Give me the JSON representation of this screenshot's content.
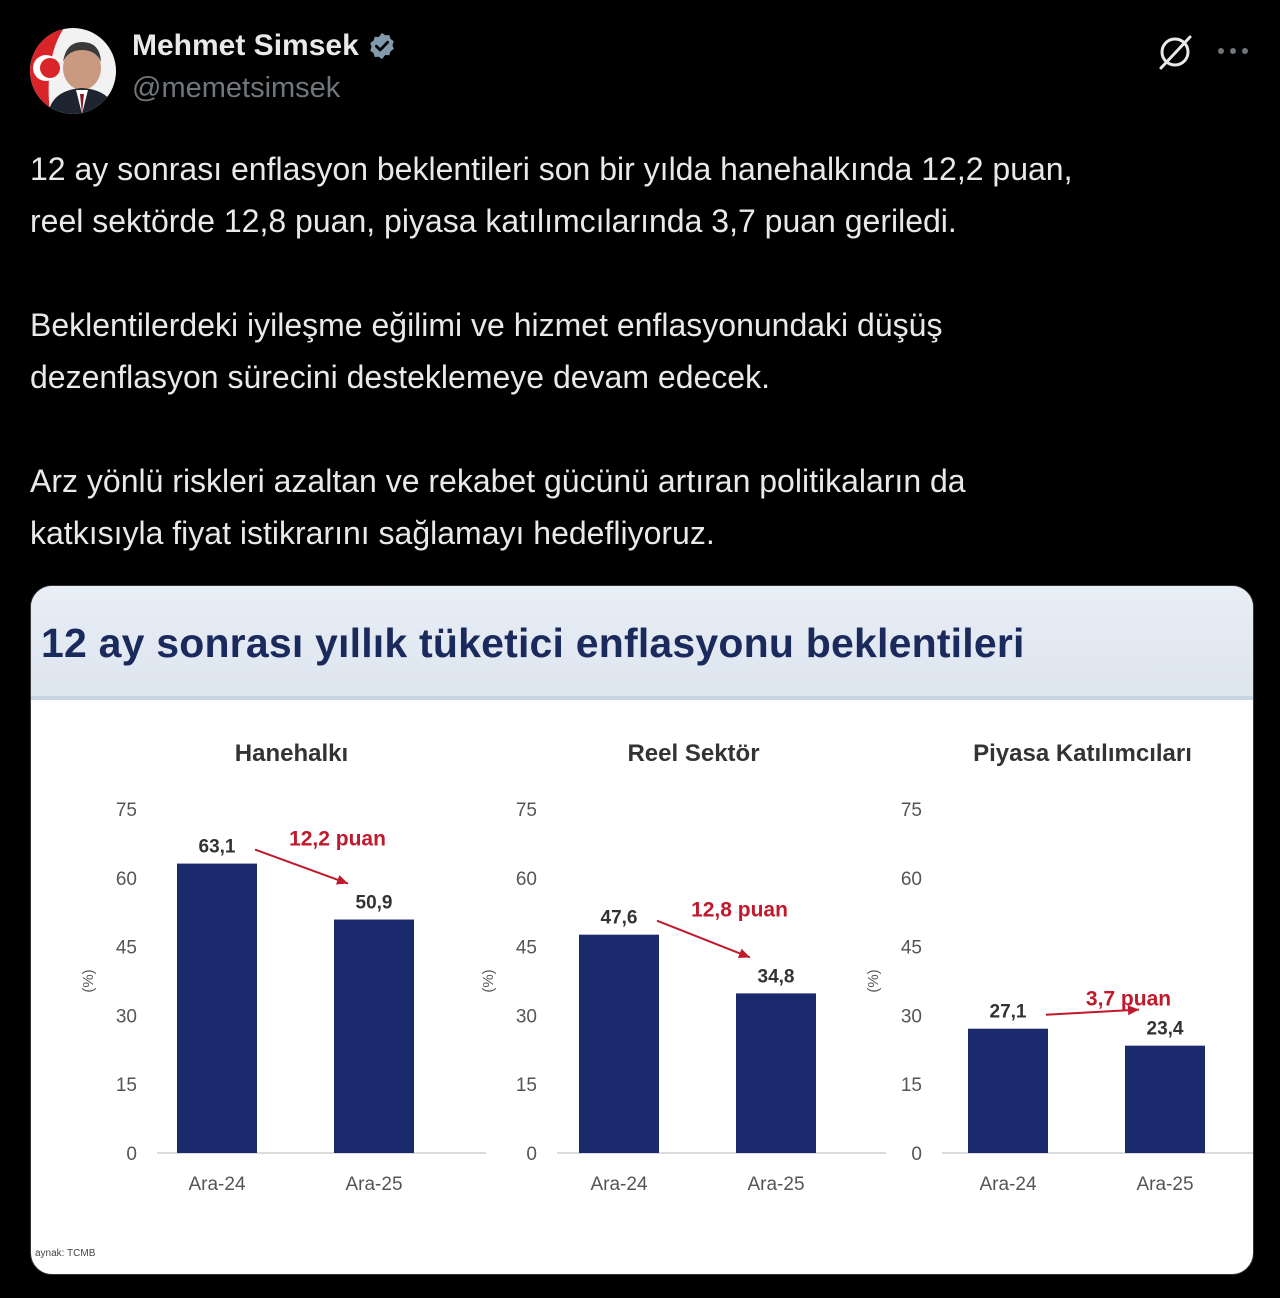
{
  "author": {
    "display_name": "Mehmet Simsek",
    "handle": "@memetsimsek"
  },
  "tweet": {
    "paragraphs": [
      "12 ay sonrası enflasyon beklentileri son bir yılda hanehalkında 12,2 puan,\nreel sektörde 12,8 puan, piyasa katılımcılarında 3,7 puan geriledi.",
      "Beklentilerdeki iyileşme eğilimi ve hizmet enflasyonundaki düşüş\ndezenflasyon sürecini desteklemeye devam edecek.",
      "Arz yönlü riskleri azaltan ve rekabet gücünü artıran politikaların da\nkatkısıyla fiyat istikrarını sağlamayı hedefliyoruz."
    ]
  },
  "icons": {
    "verified": "verified-badge-icon",
    "grok": "grok-icon",
    "more": "more-options-icon"
  },
  "colors": {
    "bar": "#1a2a6c",
    "annotation": "#c0192c",
    "title": "#1b2a5c",
    "verified": "#829aab"
  },
  "media": {
    "title": "12 ay sonrası yıllık tüketici enflasyonu beklentileri",
    "source": "aynak: TCMB"
  },
  "chart_data": [
    {
      "type": "bar",
      "title": "Hanehalkı",
      "ylabel": "(%)",
      "ylim": [
        0,
        75
      ],
      "yticks": [
        0,
        15,
        30,
        45,
        60,
        75
      ],
      "categories": [
        "Ara-24",
        "Ara-25"
      ],
      "values": [
        63.1,
        50.9
      ],
      "value_labels": [
        "63,1",
        "50,9"
      ],
      "annotation": "12,2 puan"
    },
    {
      "type": "bar",
      "title": "Reel Sektör",
      "ylabel": "(%)",
      "ylim": [
        0,
        75
      ],
      "yticks": [
        0,
        15,
        30,
        45,
        60,
        75
      ],
      "categories": [
        "Ara-24",
        "Ara-25"
      ],
      "values": [
        47.6,
        34.8
      ],
      "value_labels": [
        "47,6",
        "34,8"
      ],
      "annotation": "12,8 puan"
    },
    {
      "type": "bar",
      "title": "Piyasa Katılımcıları",
      "ylabel": "(%)",
      "ylim": [
        0,
        75
      ],
      "yticks": [
        0,
        15,
        30,
        45,
        60,
        75
      ],
      "categories": [
        "Ara-24",
        "Ara-25"
      ],
      "values": [
        27.1,
        23.4
      ],
      "value_labels": [
        "27,1",
        "23,4"
      ],
      "annotation": "3,7 puan"
    }
  ]
}
